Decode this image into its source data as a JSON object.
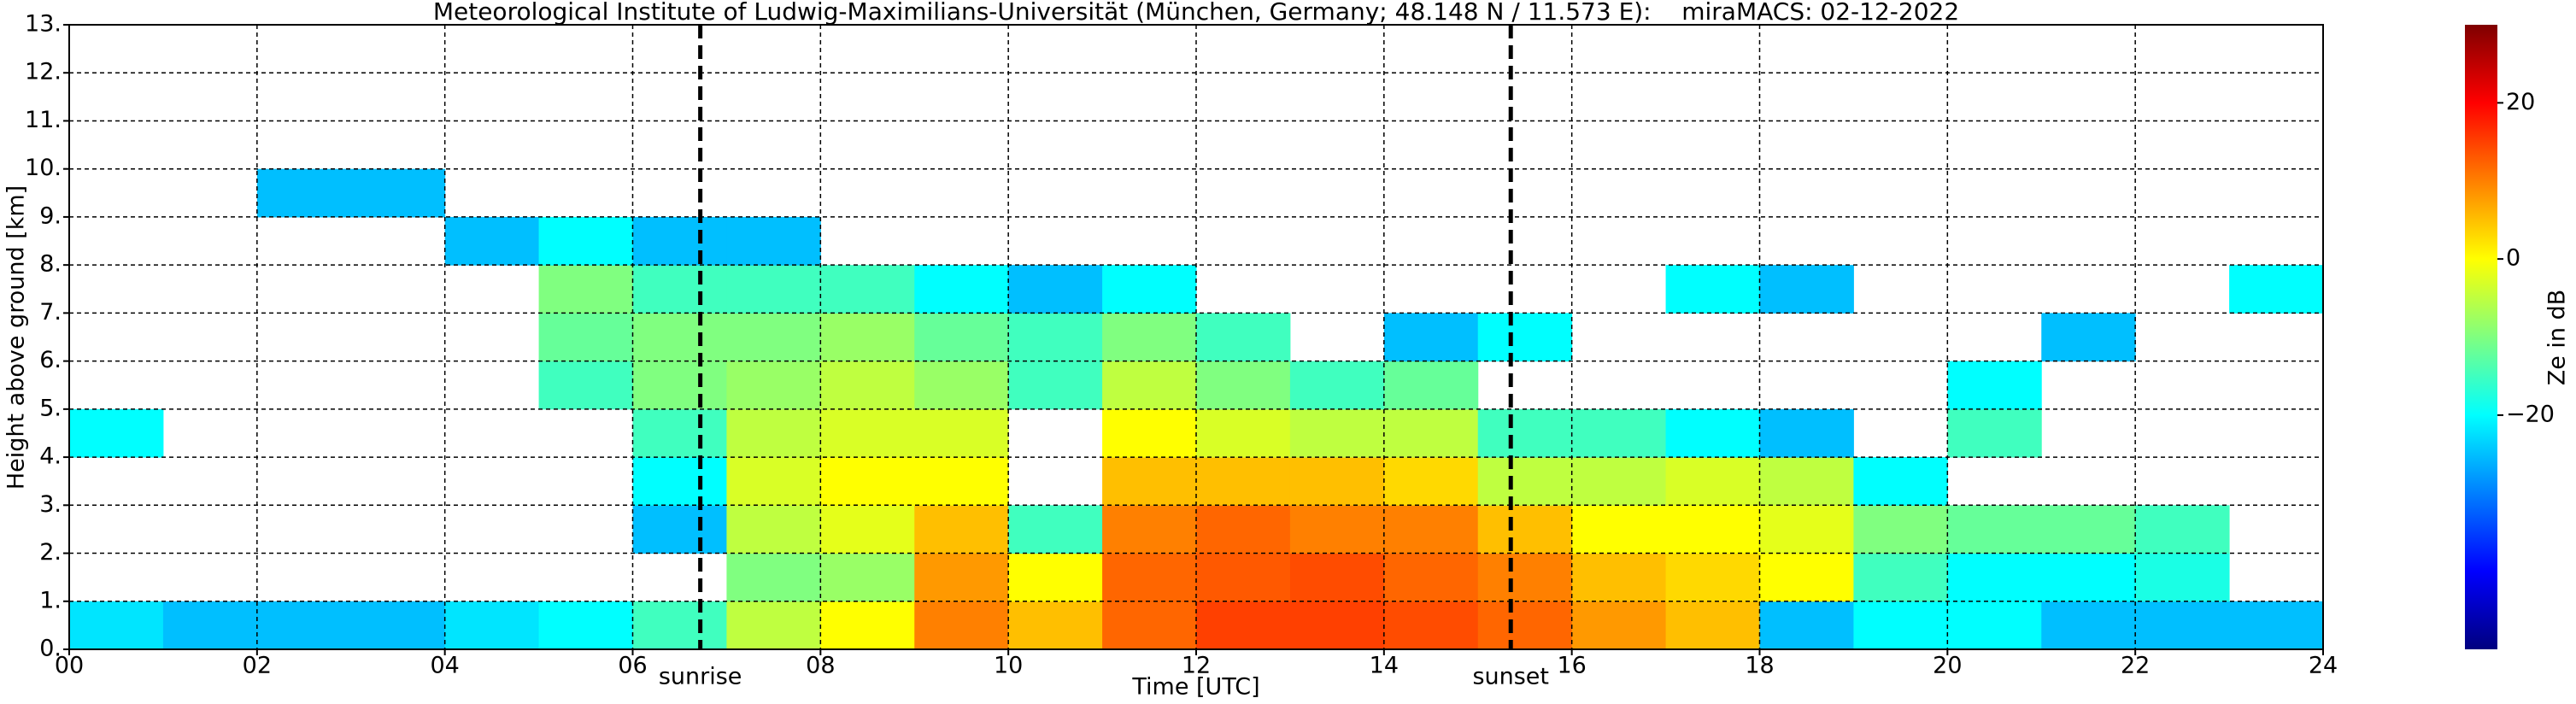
{
  "chart_data": {
    "type": "heatmap",
    "title": "Meteorological Institute of Ludwig-Maximilians-Universität (München, Germany; 48.148 N / 11.573 E):    miraMACS: 02-12-2022",
    "x_label": "Time [UTC]",
    "y_label": "Height above ground [km]",
    "colorbar_label": "Ze in dB",
    "colormap": "jet",
    "grid": true,
    "xlim": [
      0,
      24
    ],
    "ylim": [
      0,
      13
    ],
    "clim": [
      -50,
      30
    ],
    "xticks": [
      {
        "value": 0,
        "label": "00"
      },
      {
        "value": 2,
        "label": "02"
      },
      {
        "value": 4,
        "label": "04"
      },
      {
        "value": 6,
        "label": "06"
      },
      {
        "value": 8,
        "label": "08"
      },
      {
        "value": 10,
        "label": "10"
      },
      {
        "value": 12,
        "label": "12"
      },
      {
        "value": 14,
        "label": "14"
      },
      {
        "value": 16,
        "label": "16"
      },
      {
        "value": 18,
        "label": "18"
      },
      {
        "value": 20,
        "label": "20"
      },
      {
        "value": 22,
        "label": "22"
      },
      {
        "value": 24,
        "label": "24"
      }
    ],
    "yticks": [
      {
        "value": 0,
        "label": "0."
      },
      {
        "value": 1,
        "label": "1."
      },
      {
        "value": 2,
        "label": "2."
      },
      {
        "value": 3,
        "label": "3."
      },
      {
        "value": 4,
        "label": "4."
      },
      {
        "value": 5,
        "label": "5."
      },
      {
        "value": 6,
        "label": "6."
      },
      {
        "value": 7,
        "label": "7."
      },
      {
        "value": 8,
        "label": "8."
      },
      {
        "value": 9,
        "label": "9."
      },
      {
        "value": 10,
        "label": "10."
      },
      {
        "value": 11,
        "label": "11."
      },
      {
        "value": 12,
        "label": "12."
      },
      {
        "value": 13,
        "label": "13."
      }
    ],
    "cticks": [
      {
        "value": -20,
        "label": "−20"
      },
      0,
      20
    ],
    "markers": [
      {
        "label": "sunrise",
        "value": 6.72
      },
      {
        "label": "sunset",
        "value": 15.35
      }
    ],
    "x_bins": [
      0,
      1,
      2,
      3,
      4,
      5,
      6,
      7,
      8,
      9,
      10,
      11,
      12,
      13,
      14,
      15,
      16,
      17,
      18,
      19,
      20,
      21,
      22,
      23,
      24
    ],
    "y_bins": [
      0,
      1,
      2,
      3,
      4,
      5,
      6,
      7,
      8,
      9,
      10,
      11,
      12,
      13
    ],
    "z": [
      [
        -22,
        null,
        null,
        null,
        -20,
        null,
        null,
        null,
        null,
        null,
        null,
        null,
        null
      ],
      [
        -25,
        null,
        null,
        null,
        null,
        null,
        null,
        null,
        null,
        null,
        null,
        null,
        null
      ],
      [
        -25,
        null,
        null,
        null,
        null,
        null,
        null,
        null,
        null,
        -25,
        null,
        null,
        null
      ],
      [
        -25,
        null,
        null,
        null,
        null,
        null,
        null,
        null,
        null,
        -25,
        null,
        null,
        null
      ],
      [
        -22,
        null,
        null,
        null,
        null,
        null,
        null,
        null,
        -25,
        null,
        null,
        null,
        null
      ],
      [
        -20,
        null,
        null,
        null,
        null,
        -15,
        -12,
        -10,
        -20,
        null,
        null,
        null,
        null
      ],
      [
        -15,
        null,
        -25,
        -20,
        -15,
        -10,
        -10,
        -15,
        -25,
        null,
        null,
        null,
        null
      ],
      [
        -5,
        -10,
        -5,
        -3,
        -5,
        -8,
        -10,
        -15,
        -25,
        null,
        null,
        null,
        null
      ],
      [
        0,
        -8,
        -2,
        0,
        -3,
        -5,
        -8,
        -15,
        null,
        null,
        null,
        null,
        null
      ],
      [
        10,
        8,
        5,
        0,
        -3,
        -8,
        -12,
        -20,
        null,
        null,
        null,
        null,
        null
      ],
      [
        5,
        0,
        -15,
        null,
        null,
        -15,
        -15,
        -25,
        null,
        null,
        null,
        null,
        null
      ],
      [
        12,
        12,
        10,
        5,
        0,
        -5,
        -10,
        -20,
        null,
        null,
        null,
        null,
        null
      ],
      [
        15,
        13,
        12,
        5,
        -3,
        -10,
        -15,
        null,
        null,
        null,
        null,
        null,
        null
      ],
      [
        15,
        14,
        10,
        5,
        -5,
        -15,
        null,
        null,
        null,
        null,
        null,
        null,
        null
      ],
      [
        14,
        12,
        10,
        3,
        -5,
        -12,
        -25,
        null,
        null,
        null,
        null,
        null,
        null
      ],
      [
        12,
        10,
        5,
        -5,
        -15,
        null,
        -20,
        null,
        null,
        null,
        null,
        null,
        null
      ],
      [
        8,
        5,
        0,
        -5,
        -15,
        null,
        null,
        null,
        null,
        null,
        null,
        null,
        null
      ],
      [
        5,
        3,
        0,
        -3,
        -20,
        null,
        null,
        -20,
        null,
        null,
        null,
        null,
        null
      ],
      [
        -25,
        0,
        -2,
        -5,
        -25,
        null,
        null,
        -25,
        null,
        null,
        null,
        null,
        null
      ],
      [
        -20,
        -15,
        -10,
        -20,
        null,
        null,
        null,
        null,
        null,
        null,
        null,
        null,
        null
      ],
      [
        -20,
        -20,
        -12,
        null,
        -15,
        -20,
        null,
        null,
        null,
        null,
        null,
        null,
        null
      ],
      [
        -25,
        -20,
        -12,
        null,
        null,
        null,
        -25,
        null,
        null,
        null,
        null,
        null,
        null
      ],
      [
        -25,
        -18,
        -15,
        null,
        null,
        null,
        null,
        null,
        null,
        null,
        null,
        null,
        null
      ],
      [
        -25,
        null,
        null,
        null,
        null,
        null,
        null,
        -20,
        null,
        null,
        null,
        null,
        null
      ]
    ]
  }
}
